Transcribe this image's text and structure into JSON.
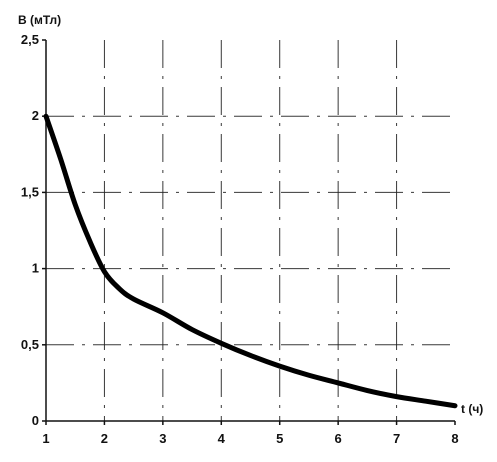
{
  "chart_data": {
    "type": "line",
    "xlabel": "t (ч)",
    "ylabel": "B (мТл)",
    "x_ticks": [
      "1",
      "2",
      "3",
      "4",
      "5",
      "6",
      "7",
      "8"
    ],
    "y_ticks": [
      "0",
      "0,5",
      "1",
      "1,5",
      "2",
      "2,5"
    ],
    "xlim": [
      1,
      8
    ],
    "ylim": [
      0,
      2.5
    ],
    "grid": true,
    "series": [
      {
        "x": [
          1.0,
          1.25,
          1.5,
          1.75,
          2.0,
          2.25,
          2.5,
          3.0,
          3.5,
          4.0,
          4.5,
          5.0,
          5.5,
          6.0,
          6.5,
          7.0,
          7.5,
          8.0
        ],
        "y": [
          2.0,
          1.72,
          1.42,
          1.18,
          0.98,
          0.87,
          0.8,
          0.71,
          0.6,
          0.51,
          0.43,
          0.36,
          0.3,
          0.25,
          0.2,
          0.16,
          0.13,
          0.1
        ]
      }
    ],
    "colors": {
      "curve": "#000000",
      "axis": "#111111",
      "grid": "#222222"
    }
  }
}
